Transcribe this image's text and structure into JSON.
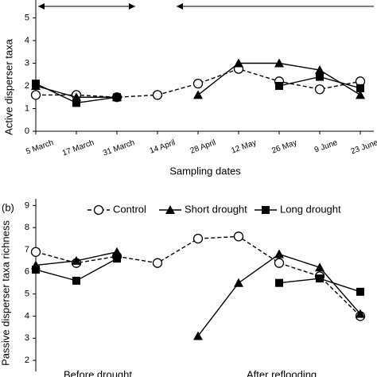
{
  "chart_data": [
    {
      "type": "line",
      "ylabel": "Active disperser taxa",
      "xlabel": "Sampling dates",
      "categories": [
        "5 March",
        "17 March",
        "31 March",
        "14 April",
        "28 April",
        "12 May",
        "26 May",
        "9 June",
        "23 June"
      ],
      "ylim": [
        0,
        6
      ],
      "yticks": [
        0,
        1,
        2,
        3,
        4,
        5
      ],
      "series": [
        {
          "name": "Control",
          "color": "#000000",
          "marker": "circle",
          "dashed": true,
          "values": [
            1.6,
            1.6,
            1.5,
            1.6,
            2.1,
            2.75,
            2.2,
            1.85,
            2.2
          ]
        },
        {
          "name": "Short drought",
          "color": "#000000",
          "marker": "triangle",
          "values": [
            2.0,
            1.5,
            1.5,
            null,
            1.6,
            3.0,
            3.0,
            2.7,
            1.6
          ]
        },
        {
          "name": "Long drought",
          "color": "#000000",
          "marker": "square",
          "values": [
            2.1,
            1.25,
            1.5,
            null,
            null,
            null,
            2.0,
            2.4,
            1.9
          ]
        }
      ]
    },
    {
      "type": "line",
      "panel": "(b)",
      "ylabel": "Passive disperser taxa richness",
      "annotations": [
        "Before drought",
        "After reflooding"
      ],
      "ylim": [
        1.5,
        9.3
      ],
      "yticks": [
        2,
        3,
        4,
        5,
        6,
        7,
        8,
        9
      ],
      "series": [
        {
          "name": "Control",
          "color": "#000000",
          "marker": "circle",
          "dashed": true,
          "values": [
            6.9,
            6.4,
            6.7,
            6.4,
            7.5,
            7.6,
            6.4,
            5.8,
            4.0
          ]
        },
        {
          "name": "Short drought",
          "color": "#000000",
          "marker": "triangle",
          "values": [
            6.3,
            6.5,
            6.9,
            null,
            3.1,
            5.5,
            6.8,
            6.2,
            4.1
          ]
        },
        {
          "name": "Long drought",
          "color": "#000000",
          "marker": "square",
          "values": [
            6.1,
            5.6,
            6.6,
            null,
            null,
            null,
            5.5,
            5.7,
            5.1
          ]
        }
      ]
    }
  ]
}
